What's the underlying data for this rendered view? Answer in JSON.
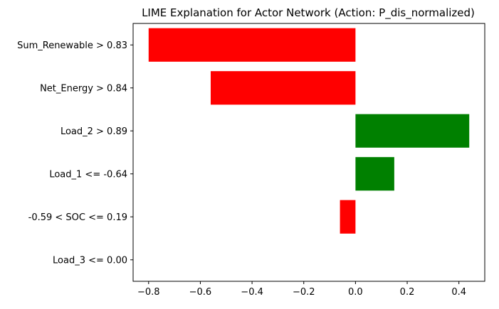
{
  "chart_data": {
    "type": "bar",
    "orientation": "horizontal",
    "title": "LIME Explanation for Actor Network (Action: P_dis_normalized)",
    "xlabel": "",
    "ylabel": "",
    "categories": [
      "Sum_Renewable > 0.83",
      "Net_Energy > 0.84",
      "Load_2 > 0.89",
      "Load_1 <= -0.64",
      "-0.59 < SOC <= 0.19",
      "Load_3 <= 0.00"
    ],
    "values": [
      -0.8,
      -0.56,
      0.44,
      0.15,
      -0.06,
      0.0
    ],
    "xlim": [
      -0.86,
      0.5
    ],
    "xticks": [
      -0.8,
      -0.6,
      -0.4,
      -0.2,
      0.0,
      0.2,
      0.4
    ],
    "xtick_labels": [
      "−0.8",
      "−0.6",
      "−0.4",
      "−0.2",
      "0.0",
      "0.2",
      "0.4"
    ],
    "grid": false,
    "colors": {
      "positive": "#008000",
      "negative": "#ff0000"
    }
  }
}
